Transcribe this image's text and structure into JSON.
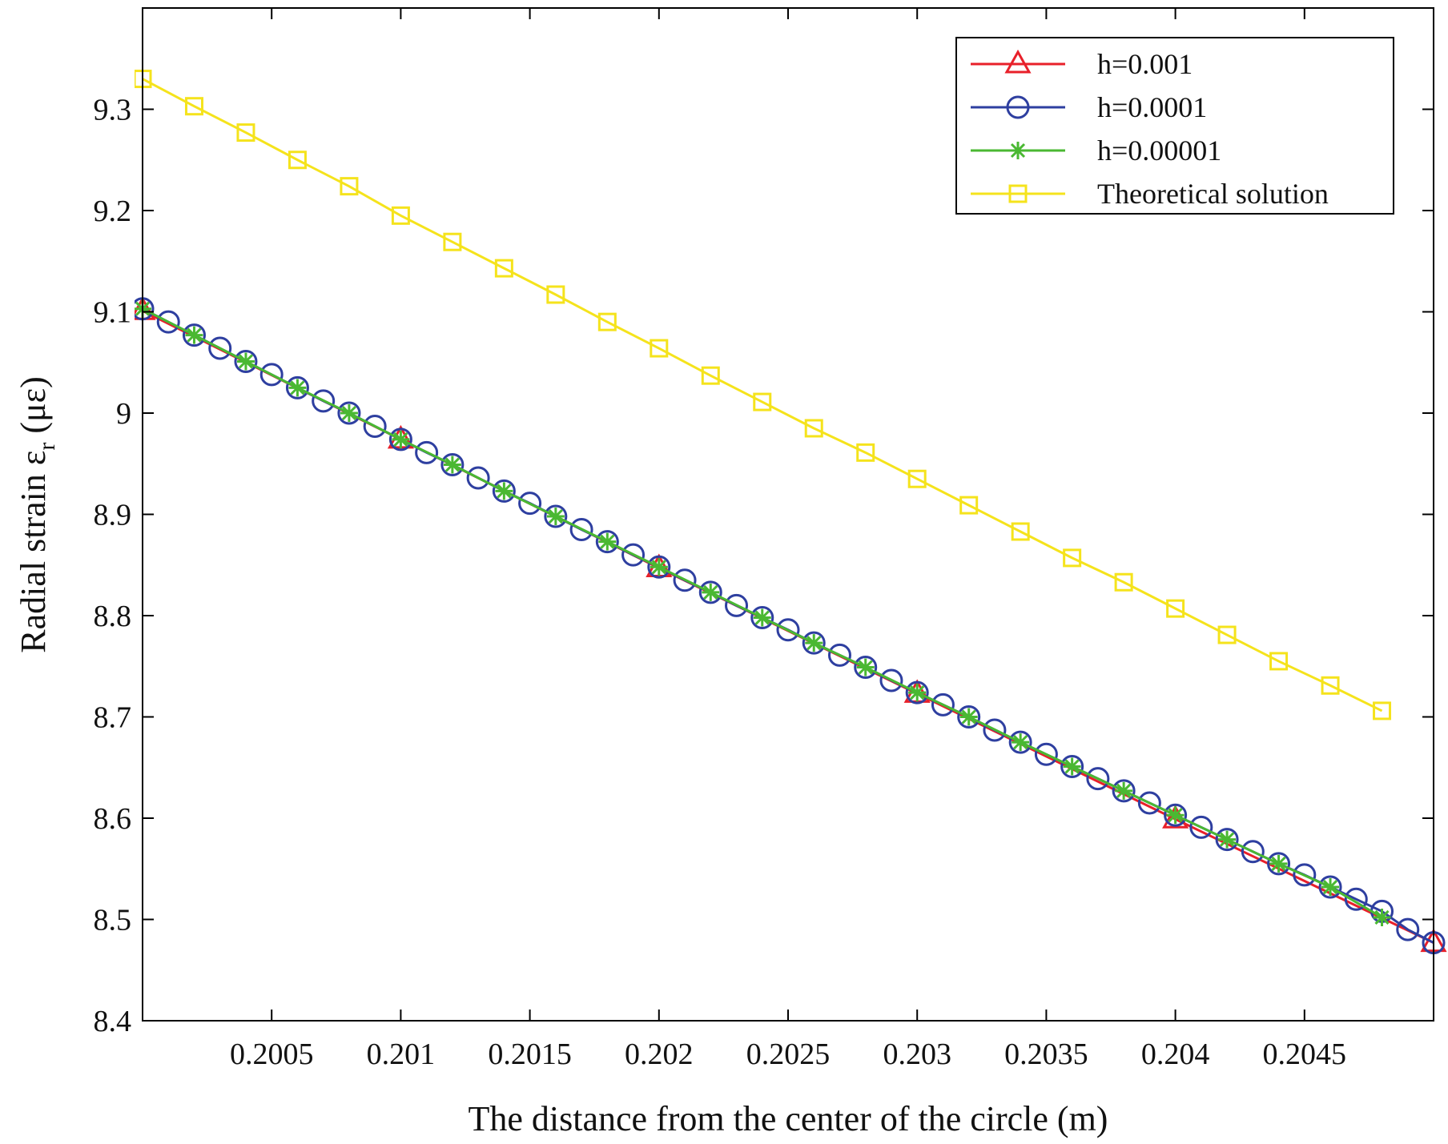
{
  "chart_data": {
    "type": "line",
    "title": "",
    "xlabel": "The distance from the center of the circle (m)",
    "ylabel_main": "Radial strain ε",
    "ylabel_sub": "r",
    "ylabel_unit": " (με)",
    "xlim": [
      0.2,
      0.205
    ],
    "ylim": [
      8.4,
      9.4
    ],
    "xticks": [
      0.2005,
      0.201,
      0.2015,
      0.202,
      0.2025,
      0.203,
      0.2035,
      0.204,
      0.2045
    ],
    "xtick_labels": [
      "0.2005",
      "0.201",
      "0.2015",
      "0.202",
      "0.2025",
      "0.203",
      "0.2035",
      "0.204",
      "0.2045"
    ],
    "yticks": [
      8.4,
      8.5,
      8.6,
      8.7,
      8.8,
      8.9,
      9.0,
      9.1,
      9.2,
      9.3
    ],
    "ytick_labels": [
      "8.4",
      "8.5",
      "8.6",
      "8.7",
      "8.8",
      "8.9",
      "9",
      "9.1",
      "9.2",
      "9.3"
    ],
    "grid": false,
    "legend_position": "top-right",
    "series": [
      {
        "name": "h=0.001",
        "color": "#e8202a",
        "marker": "triangle",
        "x": [
          0.2,
          0.201,
          0.202,
          0.203,
          0.204,
          0.205
        ],
        "y": [
          9.101,
          8.974,
          8.847,
          8.723,
          8.599,
          8.477
        ]
      },
      {
        "name": "h=0.0001",
        "color": "#2e3fa0",
        "marker": "circle",
        "x": [
          0.2,
          0.2001,
          0.2002,
          0.2003,
          0.2004,
          0.2005,
          0.2006,
          0.2007,
          0.2008,
          0.2009,
          0.201,
          0.2011,
          0.2012,
          0.2013,
          0.2014,
          0.2015,
          0.2016,
          0.2017,
          0.2018,
          0.2019,
          0.202,
          0.2021,
          0.2022,
          0.2023,
          0.2024,
          0.2025,
          0.2026,
          0.2027,
          0.2028,
          0.2029,
          0.203,
          0.2031,
          0.2032,
          0.2033,
          0.2034,
          0.2035,
          0.2036,
          0.2037,
          0.2038,
          0.2039,
          0.204,
          0.2041,
          0.2042,
          0.2043,
          0.2044,
          0.2045,
          0.2046,
          0.2047,
          0.2048,
          0.2049,
          0.205
        ],
        "y": [
          9.103,
          9.09,
          9.077,
          9.064,
          9.051,
          9.038,
          9.025,
          9.012,
          9.0,
          8.987,
          8.974,
          8.961,
          8.949,
          8.936,
          8.923,
          8.911,
          8.898,
          8.885,
          8.873,
          8.86,
          8.848,
          8.835,
          8.823,
          8.81,
          8.798,
          8.786,
          8.773,
          8.761,
          8.749,
          8.736,
          8.724,
          8.712,
          8.7,
          8.687,
          8.675,
          8.663,
          8.651,
          8.639,
          8.627,
          8.615,
          8.603,
          8.591,
          8.579,
          8.567,
          8.555,
          8.544,
          8.532,
          8.52,
          8.508,
          8.49,
          8.477
        ]
      },
      {
        "name": "h=0.00001",
        "color": "#4ab832",
        "marker": "star",
        "x": [
          0.2,
          0.2002,
          0.2004,
          0.2006,
          0.2008,
          0.201,
          0.2012,
          0.2014,
          0.2016,
          0.2018,
          0.202,
          0.2022,
          0.2024,
          0.2026,
          0.2028,
          0.203,
          0.2032,
          0.2034,
          0.2036,
          0.2038,
          0.204,
          0.2042,
          0.2044,
          0.2046,
          0.2048
        ],
        "y": [
          9.103,
          9.077,
          9.051,
          9.025,
          9.0,
          8.974,
          8.949,
          8.923,
          8.898,
          8.873,
          8.848,
          8.823,
          8.798,
          8.773,
          8.749,
          8.724,
          8.7,
          8.675,
          8.651,
          8.627,
          8.603,
          8.579,
          8.555,
          8.532,
          8.502
        ]
      },
      {
        "name": "Theoretical solution",
        "color": "#f5e31c",
        "marker": "square",
        "x": [
          0.2,
          0.2002,
          0.2004,
          0.2006,
          0.2008,
          0.201,
          0.2012,
          0.2014,
          0.2016,
          0.2018,
          0.202,
          0.2022,
          0.2024,
          0.2026,
          0.2028,
          0.203,
          0.2032,
          0.2034,
          0.2036,
          0.2038,
          0.204,
          0.2042,
          0.2044,
          0.2046,
          0.2048
        ],
        "y": [
          9.33,
          9.303,
          9.277,
          9.25,
          9.224,
          9.195,
          9.169,
          9.143,
          9.117,
          9.09,
          9.064,
          9.037,
          9.011,
          8.985,
          8.961,
          8.935,
          8.909,
          8.883,
          8.857,
          8.833,
          8.807,
          8.781,
          8.755,
          8.731,
          8.706
        ]
      }
    ]
  }
}
